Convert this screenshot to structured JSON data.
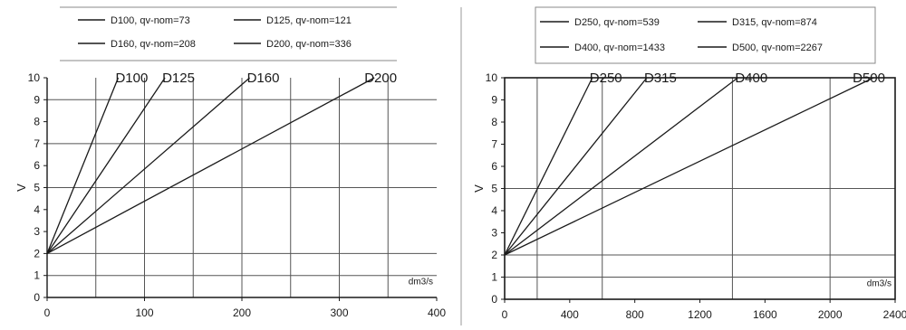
{
  "chart_data": [
    {
      "type": "line",
      "ylabel": "V",
      "unit_label": "dm3/s",
      "xlim": [
        0,
        400
      ],
      "ylim": [
        0,
        10
      ],
      "xticks": [
        "0",
        "100",
        "200",
        "300",
        "400"
      ],
      "yticks": [
        "0",
        "1",
        "2",
        "3",
        "4",
        "5",
        "6",
        "7",
        "8",
        "9",
        "10"
      ],
      "x_gridlines": [
        50,
        100,
        150,
        200,
        250,
        300,
        350
      ],
      "y_gridlines": [
        1,
        2,
        5,
        7,
        9
      ],
      "plot_frame": false,
      "legend_position": "top",
      "series": [
        {
          "legend": "D100, qv-nom=73",
          "curve_label": "D100",
          "x": [
            0,
            73
          ],
          "y": [
            2,
            10
          ]
        },
        {
          "legend": "D125, qv-nom=121",
          "curve_label": "D125",
          "x": [
            0,
            121
          ],
          "y": [
            2,
            10
          ]
        },
        {
          "legend": "D160, qv-nom=208",
          "curve_label": "D160",
          "x": [
            0,
            208
          ],
          "y": [
            2,
            10
          ]
        },
        {
          "legend": "D200, qv-nom=336",
          "curve_label": "D200",
          "x": [
            0,
            336
          ],
          "y": [
            2,
            10
          ]
        }
      ]
    },
    {
      "type": "line",
      "ylabel": "V",
      "unit_label": "dm3/s",
      "xlim": [
        0,
        2400
      ],
      "ylim": [
        0,
        10
      ],
      "xticks": [
        "0",
        "400",
        "800",
        "1200",
        "1600",
        "2000",
        "2400"
      ],
      "yticks": [
        "0",
        "1",
        "2",
        "3",
        "4",
        "5",
        "6",
        "7",
        "8",
        "9",
        "10"
      ],
      "x_gridlines": [
        200,
        600,
        1400,
        2000
      ],
      "y_gridlines": [
        1,
        2,
        5
      ],
      "plot_frame": true,
      "legend_position": "top",
      "series": [
        {
          "legend": "D250, qv-nom=539",
          "curve_label": "D250",
          "x": [
            0,
            539
          ],
          "y": [
            2,
            10
          ]
        },
        {
          "legend": "D315, qv-nom=874",
          "curve_label": "D315",
          "x": [
            0,
            874
          ],
          "y": [
            2,
            10
          ]
        },
        {
          "legend": "D400, qv-nom=1433",
          "curve_label": "D400",
          "x": [
            0,
            1433
          ],
          "y": [
            2,
            10
          ]
        },
        {
          "legend": "D500, qv-nom=2267",
          "curve_label": "D500",
          "x": [
            0,
            2267
          ],
          "y": [
            2,
            10
          ]
        }
      ]
    }
  ]
}
